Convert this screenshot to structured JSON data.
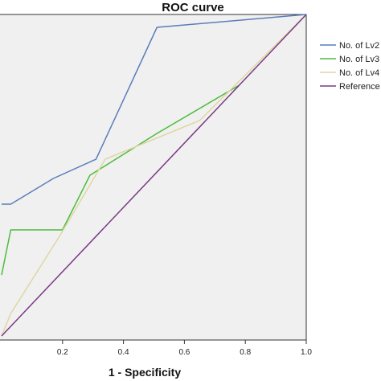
{
  "chart_data": {
    "type": "line",
    "title": "ROC curve",
    "xlabel": "1 - Specificity",
    "ylabel": "",
    "xlim": [
      0.0,
      1.0
    ],
    "ylim": [
      0.0,
      1.0
    ],
    "xticks": [
      "0.2",
      "0.4",
      "0.6",
      "0.8",
      "1.0"
    ],
    "grid": false,
    "legend_position": "right",
    "plot_background": "#f0f0f0",
    "series": [
      {
        "name": "No. of Lv2",
        "color": "#5b7dbb",
        "x": [
          0.0,
          0.03,
          0.17,
          0.31,
          0.51,
          1.0
        ],
        "y": [
          0.41,
          0.41,
          0.49,
          0.55,
          0.96,
          1.0
        ]
      },
      {
        "name": "No. of Lv3",
        "color": "#4cbb3c",
        "x": [
          0.0,
          0.03,
          0.2,
          0.29,
          0.51,
          0.78
        ],
        "y": [
          0.19,
          0.33,
          0.33,
          0.5,
          0.63,
          0.78
        ]
      },
      {
        "name": "No. of Lv4",
        "color": "#ddd7a3",
        "x": [
          0.0,
          0.03,
          0.19,
          0.34,
          0.65,
          1.0
        ],
        "y": [
          0.0,
          0.07,
          0.31,
          0.55,
          0.67,
          1.0
        ]
      },
      {
        "name": "Reference Line",
        "color": "#7b3a86",
        "x": [
          0.0,
          1.0
        ],
        "y": [
          0.0,
          1.0
        ]
      }
    ]
  }
}
